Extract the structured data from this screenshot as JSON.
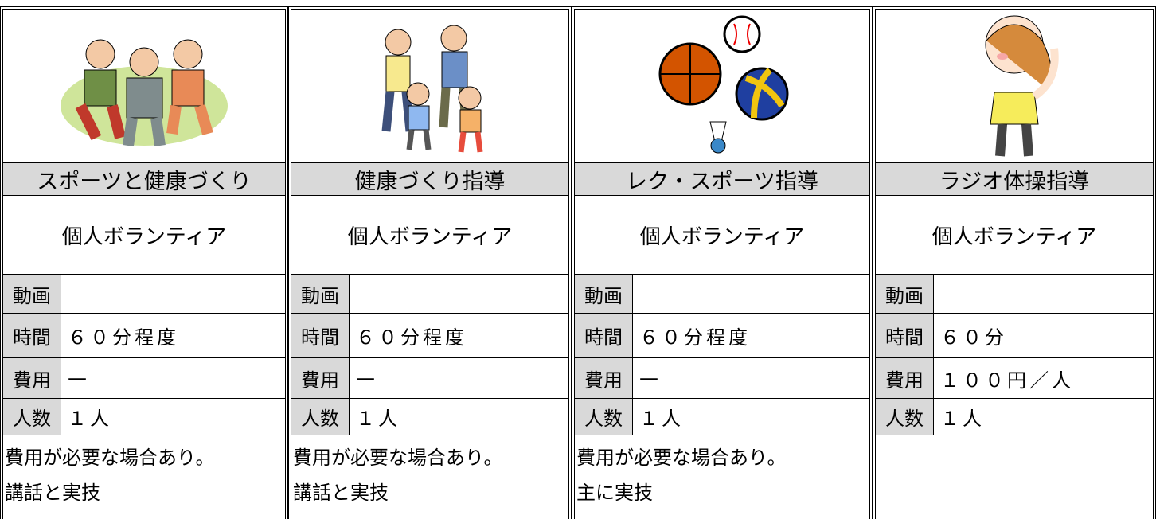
{
  "cards": [
    {
      "title": "スポーツと健康づくり",
      "type": "個人ボランティア",
      "rows": [
        {
          "label": "動画"
        },
        {
          "label": "時間",
          "value": "６０分程度"
        },
        {
          "label": "費用",
          "value": "—"
        },
        {
          "label": "人数",
          "value": "１人"
        }
      ],
      "notes": [
        "費用が必要な場合あり。",
        "講話と実技"
      ]
    },
    {
      "title": "健康づくり指導",
      "type": "個人ボランティア",
      "rows": [
        {
          "label": "動画"
        },
        {
          "label": "時間",
          "value": "６０分程度"
        },
        {
          "label": "費用",
          "value": "—"
        },
        {
          "label": "人数",
          "value": "１人"
        }
      ],
      "notes": [
        "費用が必要な場合あり。",
        "講話と実技"
      ]
    },
    {
      "title": "レク・スポーツ指導",
      "type": "個人ボランティア",
      "rows": [
        {
          "label": "動画"
        },
        {
          "label": "時間",
          "value": "６０分程度"
        },
        {
          "label": "費用",
          "value": "—"
        },
        {
          "label": "人数",
          "value": "１人"
        }
      ],
      "notes": [
        "費用が必要な場合あり。",
        "主に実技"
      ]
    },
    {
      "title": "ラジオ体操指導",
      "type": "個人ボランティア",
      "rows": [
        {
          "label": "動画"
        },
        {
          "label": "時間",
          "value": "６０分"
        },
        {
          "label": "費用",
          "value": "１００円／人"
        },
        {
          "label": "人数",
          "value": "１人"
        }
      ]
    }
  ]
}
